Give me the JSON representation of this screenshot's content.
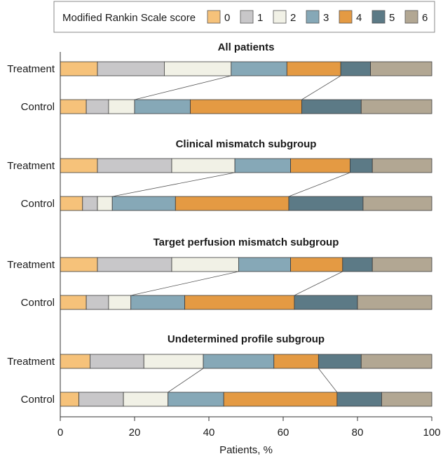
{
  "chart_data": {
    "type": "bar",
    "orientation": "horizontal",
    "stacked": true,
    "legend": {
      "title": "Modified Rankin Scale score",
      "position": "top",
      "entries": [
        "0",
        "1",
        "2",
        "3",
        "4",
        "5",
        "6"
      ]
    },
    "colors": [
      "#f6c27a",
      "#c8c7c9",
      "#f1f1e6",
      "#86a8b7",
      "#e49a43",
      "#5c7a86",
      "#b2a793"
    ],
    "xlabel": "Patients, %",
    "xlim": [
      0,
      100
    ],
    "xticks": [
      0,
      20,
      40,
      60,
      80,
      100
    ],
    "grid": false,
    "connector_lines": "drawn between Treatment and Control bars at the 2|3 and 4|5 boundaries",
    "groups": [
      {
        "title": "All patients",
        "rows": [
          {
            "label": "Treatment",
            "segments": [
              10,
              18,
              18,
              15,
              14.5,
              8,
              16.5
            ]
          },
          {
            "label": "Control",
            "segments": [
              7,
              6,
              7,
              15,
              30,
              16,
              19
            ]
          }
        ]
      },
      {
        "title": "Clinical mismatch subgroup",
        "rows": [
          {
            "label": "Treatment",
            "segments": [
              10,
              20,
              17,
              15,
              16,
              6,
              16
            ]
          },
          {
            "label": "Control",
            "segments": [
              6,
              4,
              4,
              17,
              30.5,
              20,
              18.5
            ]
          }
        ]
      },
      {
        "title": "Target perfusion mismatch subgroup",
        "rows": [
          {
            "label": "Treatment",
            "segments": [
              10,
              20,
              18,
              14,
              14,
              8,
              16
            ]
          },
          {
            "label": "Control",
            "segments": [
              7,
              6,
              6,
              14.5,
              29.5,
              17,
              20
            ]
          }
        ]
      },
      {
        "title": "Undetermined profile subgroup",
        "rows": [
          {
            "label": "Treatment",
            "segments": [
              8,
              14.5,
              16,
              19,
              12,
              11.5,
              19
            ]
          },
          {
            "label": "Control",
            "segments": [
              5,
              12,
              12,
              15,
              30.5,
              12,
              13.5
            ]
          }
        ]
      }
    ]
  }
}
